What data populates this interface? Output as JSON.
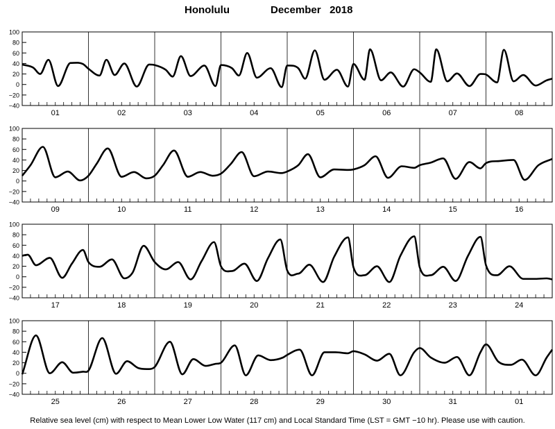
{
  "header": {
    "station": "Honolulu",
    "month": "December",
    "year": "2018"
  },
  "caption": "Relative sea level (cm) with respect to Mean Lower Low Water (117 cm) and Local Standard Time (LST = GMT −10 hr). Please use with caution.",
  "colors": {
    "curve": "#000000",
    "grid": "#000000",
    "background": "#ffffff"
  },
  "chart_data": {
    "type": "line",
    "title": "Honolulu December 2018",
    "ylim": [
      -40,
      100
    ],
    "yticks": [
      -40,
      -20,
      0,
      20,
      40,
      60,
      80,
      100
    ],
    "ytick_labels": [
      "−40",
      "−20",
      "0",
      "20",
      "40",
      "60",
      "80",
      "100"
    ],
    "hour_ticks_per_day": 8,
    "panels": [
      {
        "day_labels": [
          "01",
          "02",
          "03",
          "04",
          "05",
          "06",
          "07",
          "08"
        ],
        "x": [
          0,
          4,
          6.5,
          9.5,
          13,
          17.5,
          22,
          24,
          28,
          30.5,
          33.5,
          37,
          41.5,
          46,
          48,
          52,
          54.5,
          57.5,
          61,
          66,
          70,
          72,
          76,
          78.5,
          81.5,
          85,
          90,
          94,
          96,
          100,
          102.5,
          106,
          109.5,
          114,
          118,
          120,
          124,
          126,
          130,
          133.5,
          138,
          142,
          144,
          148,
          150,
          154,
          157.5,
          162,
          166,
          168,
          172,
          174.5,
          178,
          181.5,
          186,
          190,
          192
        ],
        "y": [
          38,
          32,
          20,
          47,
          -3,
          41,
          39,
          30,
          17,
          47,
          18,
          40,
          -4,
          38,
          37,
          28,
          15,
          54,
          16,
          36,
          -3,
          37,
          31,
          17,
          60,
          13,
          31,
          -5,
          36,
          31,
          11,
          65,
          9,
          28,
          -4,
          39,
          9,
          67,
          8,
          23,
          -4,
          29,
          23,
          5,
          67,
          6,
          21,
          -3,
          20,
          19,
          4,
          66,
          6,
          18,
          -2,
          8,
          11
        ]
      },
      {
        "day_labels": [
          "09",
          "10",
          "11",
          "12",
          "13",
          "14",
          "15",
          "16"
        ],
        "x": [
          0,
          3,
          7.5,
          12,
          16.5,
          21,
          24,
          27,
          31,
          36,
          40.5,
          45,
          48,
          51,
          55,
          60,
          64.5,
          69,
          72,
          75.5,
          79.5,
          84,
          89,
          94,
          96,
          100,
          103.5,
          108,
          113,
          118,
          120,
          124,
          128,
          132.5,
          137.5,
          142,
          144,
          148,
          152.5,
          157,
          162,
          166,
          168,
          173,
          178,
          182,
          187,
          192
        ],
        "y": [
          10,
          30,
          65,
          7,
          18,
          1,
          10,
          33,
          62,
          8,
          17,
          5,
          10,
          30,
          58,
          8,
          17,
          10,
          14,
          32,
          55,
          9,
          18,
          15,
          18,
          30,
          51,
          7,
          22,
          21,
          22,
          30,
          47,
          6,
          28,
          25,
          30,
          35,
          43,
          4,
          36,
          24,
          34,
          38,
          40,
          2,
          30,
          42
        ]
      },
      {
        "day_labels": [
          "17",
          "18",
          "19",
          "20",
          "21",
          "22",
          "23",
          "24"
        ],
        "x": [
          0,
          2,
          5,
          10,
          14.5,
          18,
          22,
          24,
          28,
          32.5,
          37,
          40,
          44,
          48,
          52,
          56.5,
          61,
          65,
          69.5,
          72,
          76,
          80.5,
          85,
          89,
          93.5,
          96,
          100,
          104,
          109,
          113,
          118,
          120,
          124,
          128.5,
          133,
          137,
          142,
          144,
          148,
          152.5,
          157,
          161.5,
          166,
          168,
          172,
          176.5,
          181.5,
          186,
          190,
          192
        ],
        "y": [
          40,
          42,
          22,
          36,
          -2,
          25,
          51,
          28,
          19,
          33,
          -3,
          8,
          59,
          28,
          14,
          28,
          -5,
          30,
          66,
          20,
          11,
          25,
          -8,
          35,
          71,
          12,
          6,
          23,
          -10,
          38,
          75,
          18,
          3,
          20,
          -10,
          40,
          77,
          18,
          3,
          19,
          -8,
          40,
          76,
          22,
          3,
          20,
          -4,
          -4,
          -3,
          -5
        ]
      },
      {
        "day_labels": [
          "25",
          "26",
          "27",
          "28",
          "29",
          "30",
          "31",
          "01"
        ],
        "x": [
          0,
          5,
          10,
          14.5,
          18.5,
          22,
          24,
          29,
          34,
          38,
          42,
          46,
          48,
          53.5,
          58,
          62,
          66.5,
          70,
          72,
          77,
          81,
          85.5,
          90,
          94.5,
          96,
          100.5,
          105,
          109.5,
          113.5,
          118,
          120,
          124,
          128.5,
          133,
          137,
          142,
          144,
          148,
          153,
          157.5,
          162,
          166,
          168,
          172.5,
          177,
          181,
          186,
          190,
          192
        ],
        "y": [
          -2,
          72,
          0,
          21,
          1,
          3,
          5,
          67,
          -1,
          23,
          10,
          8,
          12,
          60,
          -2,
          27,
          14,
          18,
          20,
          53,
          -4,
          34,
          25,
          30,
          35,
          45,
          -4,
          40,
          40,
          38,
          42,
          36,
          24,
          37,
          -4,
          40,
          48,
          30,
          20,
          31,
          -4,
          40,
          55,
          22,
          16,
          26,
          -4,
          30,
          45
        ]
      }
    ]
  }
}
